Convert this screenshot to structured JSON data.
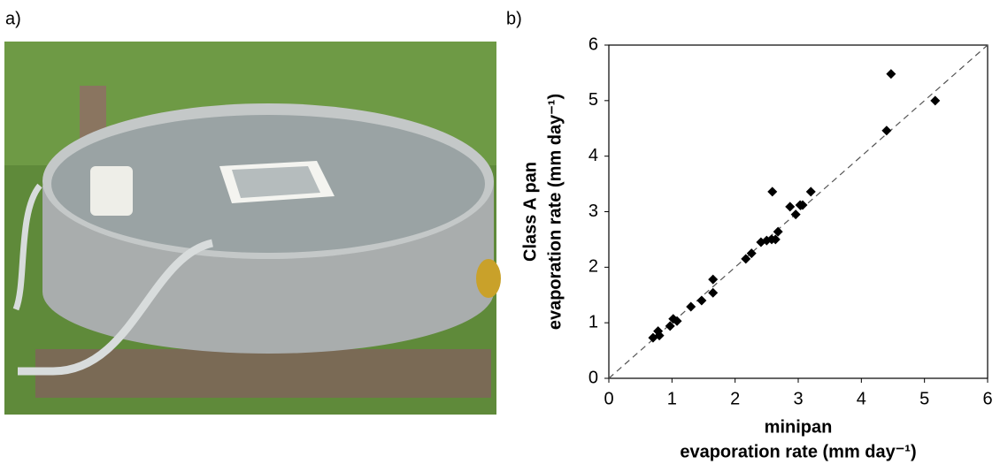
{
  "panel_labels": [
    "a)",
    "b)"
  ],
  "chart_data": {
    "type": "scatter",
    "x_label": [
      "minipan",
      "evaporation rate (mm day⁻¹)"
    ],
    "y_label": [
      "Class A pan",
      "evaporation rate (mm day⁻¹)"
    ],
    "x": [
      0.7,
      0.78,
      0.8,
      0.97,
      1.02,
      1.08,
      1.3,
      1.47,
      1.65,
      1.65,
      2.17,
      2.26,
      2.41,
      2.5,
      2.58,
      2.64,
      2.68,
      2.59,
      2.87,
      2.96,
      3.03,
      3.07,
      3.2,
      4.4,
      4.47,
      5.17
    ],
    "values": [
      0.73,
      0.85,
      0.77,
      0.94,
      1.07,
      1.03,
      1.29,
      1.4,
      1.78,
      1.54,
      2.15,
      2.25,
      2.45,
      2.48,
      2.5,
      2.5,
      2.64,
      3.36,
      3.09,
      2.95,
      3.12,
      3.12,
      3.36,
      4.46,
      5.48,
      5.0
    ],
    "color": "#000000",
    "marker": "diamond",
    "identity_line": true,
    "xlim": [
      0,
      6
    ],
    "ylim": [
      0,
      6
    ],
    "xticks": [
      0,
      1,
      2,
      3,
      4,
      5,
      6
    ],
    "yticks": [
      0,
      1,
      2,
      3,
      4,
      5,
      6
    ]
  }
}
